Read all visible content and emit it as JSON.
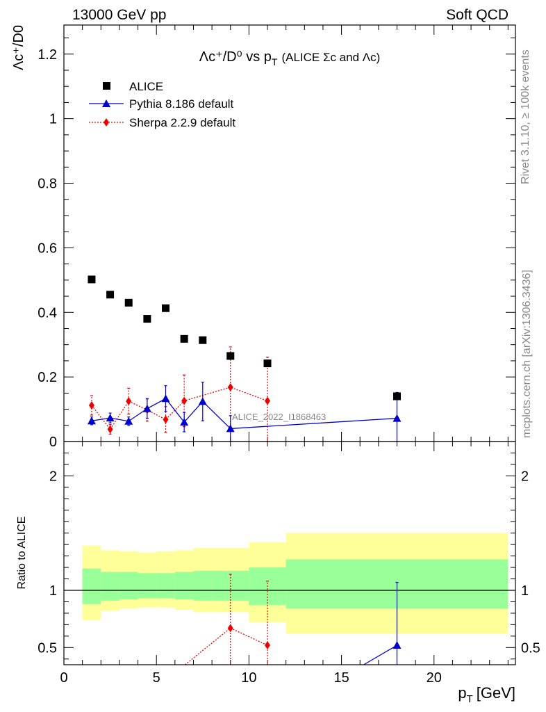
{
  "header": {
    "left": "13000 GeV pp",
    "right": "Soft QCD"
  },
  "side_labels": {
    "rivet": "Rivet 3.1.10, ≥ 100k events",
    "mcplots": "mcplots.cern.ch [arXiv:1306.3436]"
  },
  "watermark": "ALICE_2022_I1868463",
  "chart_data": [
    {
      "type": "scatter",
      "title_main": "Λc⁺/D⁰ vs p",
      "title_sub": "T",
      "title_note": "(ALICE Σc and Λc)",
      "ylabel": "Λc⁺/D0",
      "ylim": [
        0,
        1.29
      ],
      "yticks": [
        0,
        0.2,
        0.4,
        0.6,
        0.8,
        1,
        1.2
      ],
      "ytick_labels": [
        "0",
        "0.2",
        "0.4",
        "0.6",
        "0.8",
        "1",
        "1.2"
      ],
      "xlim": [
        0,
        24.4
      ],
      "legend_position": "top-left",
      "series": [
        {
          "name": "ALICE",
          "color": "#000000",
          "marker": "square",
          "x": [
            1.5,
            2.5,
            3.5,
            4.5,
            5.5,
            6.5,
            7.5,
            9,
            11,
            18
          ],
          "y": [
            0.502,
            0.455,
            0.43,
            0.38,
            0.413,
            0.318,
            0.314,
            0.265,
            0.242,
            0.14
          ]
        },
        {
          "name": "Pythia 8.186 default",
          "color": "#0000cc",
          "marker": "triangle",
          "line": "solid",
          "x": [
            1.5,
            2.5,
            3.5,
            4.5,
            5.5,
            6.5,
            7.5,
            9,
            18
          ],
          "y": [
            0.064,
            0.073,
            0.063,
            0.102,
            0.133,
            0.06,
            0.124,
            0.04,
            0.072
          ],
          "err": [
            0.012,
            0.015,
            0.013,
            0.03,
            0.04,
            0.03,
            0.06,
            0.04,
            0.08
          ]
        },
        {
          "name": "Sherpa 2.2.9 default",
          "color": "#ee0000",
          "marker": "diamond",
          "line": "dotted",
          "x": [
            1.5,
            2.5,
            3.5,
            4.5,
            5.5,
            6.5,
            9,
            11
          ],
          "y": [
            0.112,
            0.038,
            0.125,
            0.098,
            0.068,
            0.126,
            0.168,
            0.126
          ],
          "err": [
            0.03,
            0.015,
            0.04,
            0.035,
            0.04,
            0.08,
            0.125,
            0.135
          ]
        }
      ]
    },
    {
      "type": "scatter",
      "ylabel": "Ratio to ALICE",
      "xlabel_main": "p",
      "xlabel_sub": "T",
      "xlabel_unit": "[GeV]",
      "ylim": [
        0.35,
        2.3
      ],
      "yticks": [
        0.5,
        1,
        2
      ],
      "ytick_labels": [
        "0.5",
        "1",
        "2"
      ],
      "xlim": [
        0,
        24.4
      ],
      "xticks": [
        0,
        5,
        10,
        15,
        20
      ],
      "xtick_labels": [
        "0",
        "5",
        "10",
        "15",
        "20"
      ],
      "bands": {
        "edges": [
          1,
          2,
          3,
          4,
          5,
          6,
          7,
          8,
          10,
          12,
          24
        ],
        "yellow": [
          [
            0.74,
            1.39
          ],
          [
            0.82,
            1.35
          ],
          [
            0.84,
            1.34
          ],
          [
            0.85,
            1.33
          ],
          [
            0.85,
            1.34
          ],
          [
            0.83,
            1.35
          ],
          [
            0.81,
            1.37
          ],
          [
            0.81,
            1.37
          ],
          [
            0.72,
            1.42
          ],
          [
            0.62,
            1.5
          ]
        ],
        "green": [
          [
            0.88,
            1.19
          ],
          [
            0.91,
            1.16
          ],
          [
            0.92,
            1.16
          ],
          [
            0.93,
            1.15
          ],
          [
            0.93,
            1.15
          ],
          [
            0.92,
            1.16
          ],
          [
            0.91,
            1.17
          ],
          [
            0.91,
            1.17
          ],
          [
            0.87,
            1.2
          ],
          [
            0.84,
            1.27
          ]
        ],
        "yellow_color": "#ffff99",
        "green_color": "#99ff99"
      },
      "series": [
        {
          "name": "Pythia 8.186 default",
          "color": "#0000cc",
          "x": [
            18
          ],
          "y": [
            0.52
          ],
          "err": [
            0.55
          ],
          "line_from": [
            16.2,
            0.35
          ]
        },
        {
          "name": "Sherpa 2.2.9 default",
          "color": "#ee0000",
          "x": [
            9,
            11
          ],
          "y": [
            0.67,
            0.52
          ],
          "err": [
            0.47,
            0.56
          ],
          "line_from": [
            6.55,
            0.35
          ]
        }
      ]
    }
  ]
}
